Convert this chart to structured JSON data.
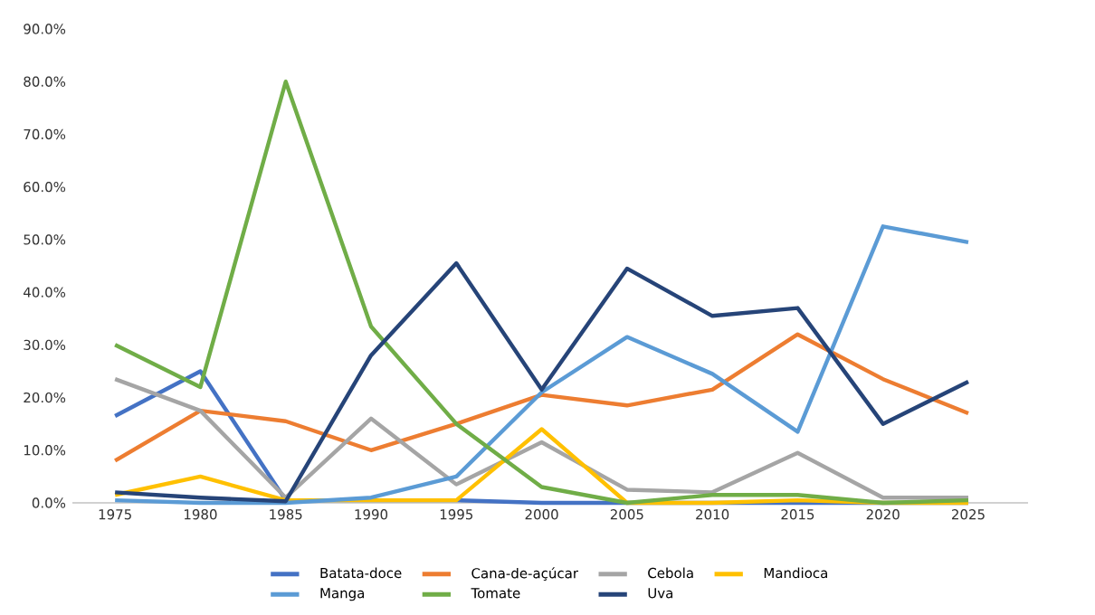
{
  "chart_data": {
    "type": "line",
    "categories": [
      "1975",
      "1980",
      "1985",
      "1990",
      "1995",
      "2000",
      "2005",
      "2010",
      "2015",
      "2020",
      "2025"
    ],
    "series": [
      {
        "name": "Batata-doce",
        "color": "#4472c4",
        "values": [
          16.5,
          25,
          0.5,
          0.5,
          0.5,
          0,
          0,
          0,
          0,
          0,
          0
        ]
      },
      {
        "name": "Cana-de-açúcar",
        "color": "#ed7d31",
        "values": [
          8,
          17.5,
          15.5,
          10,
          15,
          20.5,
          18.5,
          21.5,
          32,
          23.5,
          17
        ]
      },
      {
        "name": "Cebola",
        "color": "#a5a5a5",
        "values": [
          23.5,
          17.5,
          1,
          16,
          3.5,
          11.5,
          2.5,
          2,
          9.5,
          1,
          1
        ]
      },
      {
        "name": "Mandioca",
        "color": "#ffc000",
        "values": [
          1.5,
          5,
          0.5,
          0.5,
          0.5,
          14,
          0,
          0,
          0.5,
          0,
          0
        ]
      },
      {
        "name": "Manga",
        "color": "#5b9bd5",
        "values": [
          0.5,
          0,
          0,
          1,
          5,
          21,
          31.5,
          24.5,
          13.5,
          52.5,
          49.5
        ]
      },
      {
        "name": "Tomate",
        "color": "#70ad47",
        "values": [
          30,
          22,
          80,
          33.5,
          15,
          3,
          0,
          1.5,
          1.5,
          0,
          0.5
        ]
      },
      {
        "name": "Uva",
        "color": "#264478",
        "values": [
          2,
          1,
          0.3,
          28,
          45.5,
          21.5,
          44.5,
          35.5,
          37,
          15,
          23
        ]
      }
    ],
    "ylim": [
      0,
      90
    ],
    "yticks": [
      {
        "value": 0,
        "label": "0.0%"
      },
      {
        "value": 10,
        "label": "10.0%"
      },
      {
        "value": 20,
        "label": "20.0%"
      },
      {
        "value": 30,
        "label": "30.0%"
      },
      {
        "value": 40,
        "label": "40.0%"
      },
      {
        "value": 50,
        "label": "50.0%"
      },
      {
        "value": 60,
        "label": "60.0%"
      },
      {
        "value": 70,
        "label": "70.0%"
      },
      {
        "value": 80,
        "label": "80.0%"
      },
      {
        "value": 90,
        "label": "90.0%"
      }
    ],
    "grid": false,
    "legend": "bottom",
    "marker": "none",
    "line_style": "solid"
  }
}
